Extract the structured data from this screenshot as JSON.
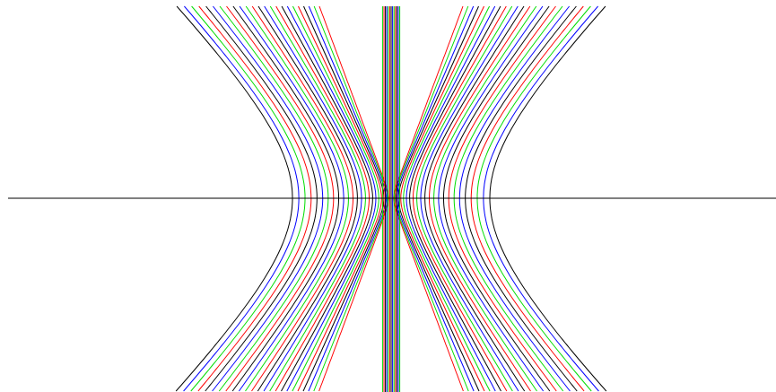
{
  "figure": {
    "description_type": "hyperbola-family-plot",
    "background_color": "#ffffff",
    "axis": {
      "color": "#000000"
    },
    "color_cycle": [
      "#000000",
      "#0000ff",
      "#00dd00",
      "#ff0000"
    ],
    "curves": {
      "count": 24,
      "family": "hyperbola",
      "symmetric_about_center": true
    }
  }
}
